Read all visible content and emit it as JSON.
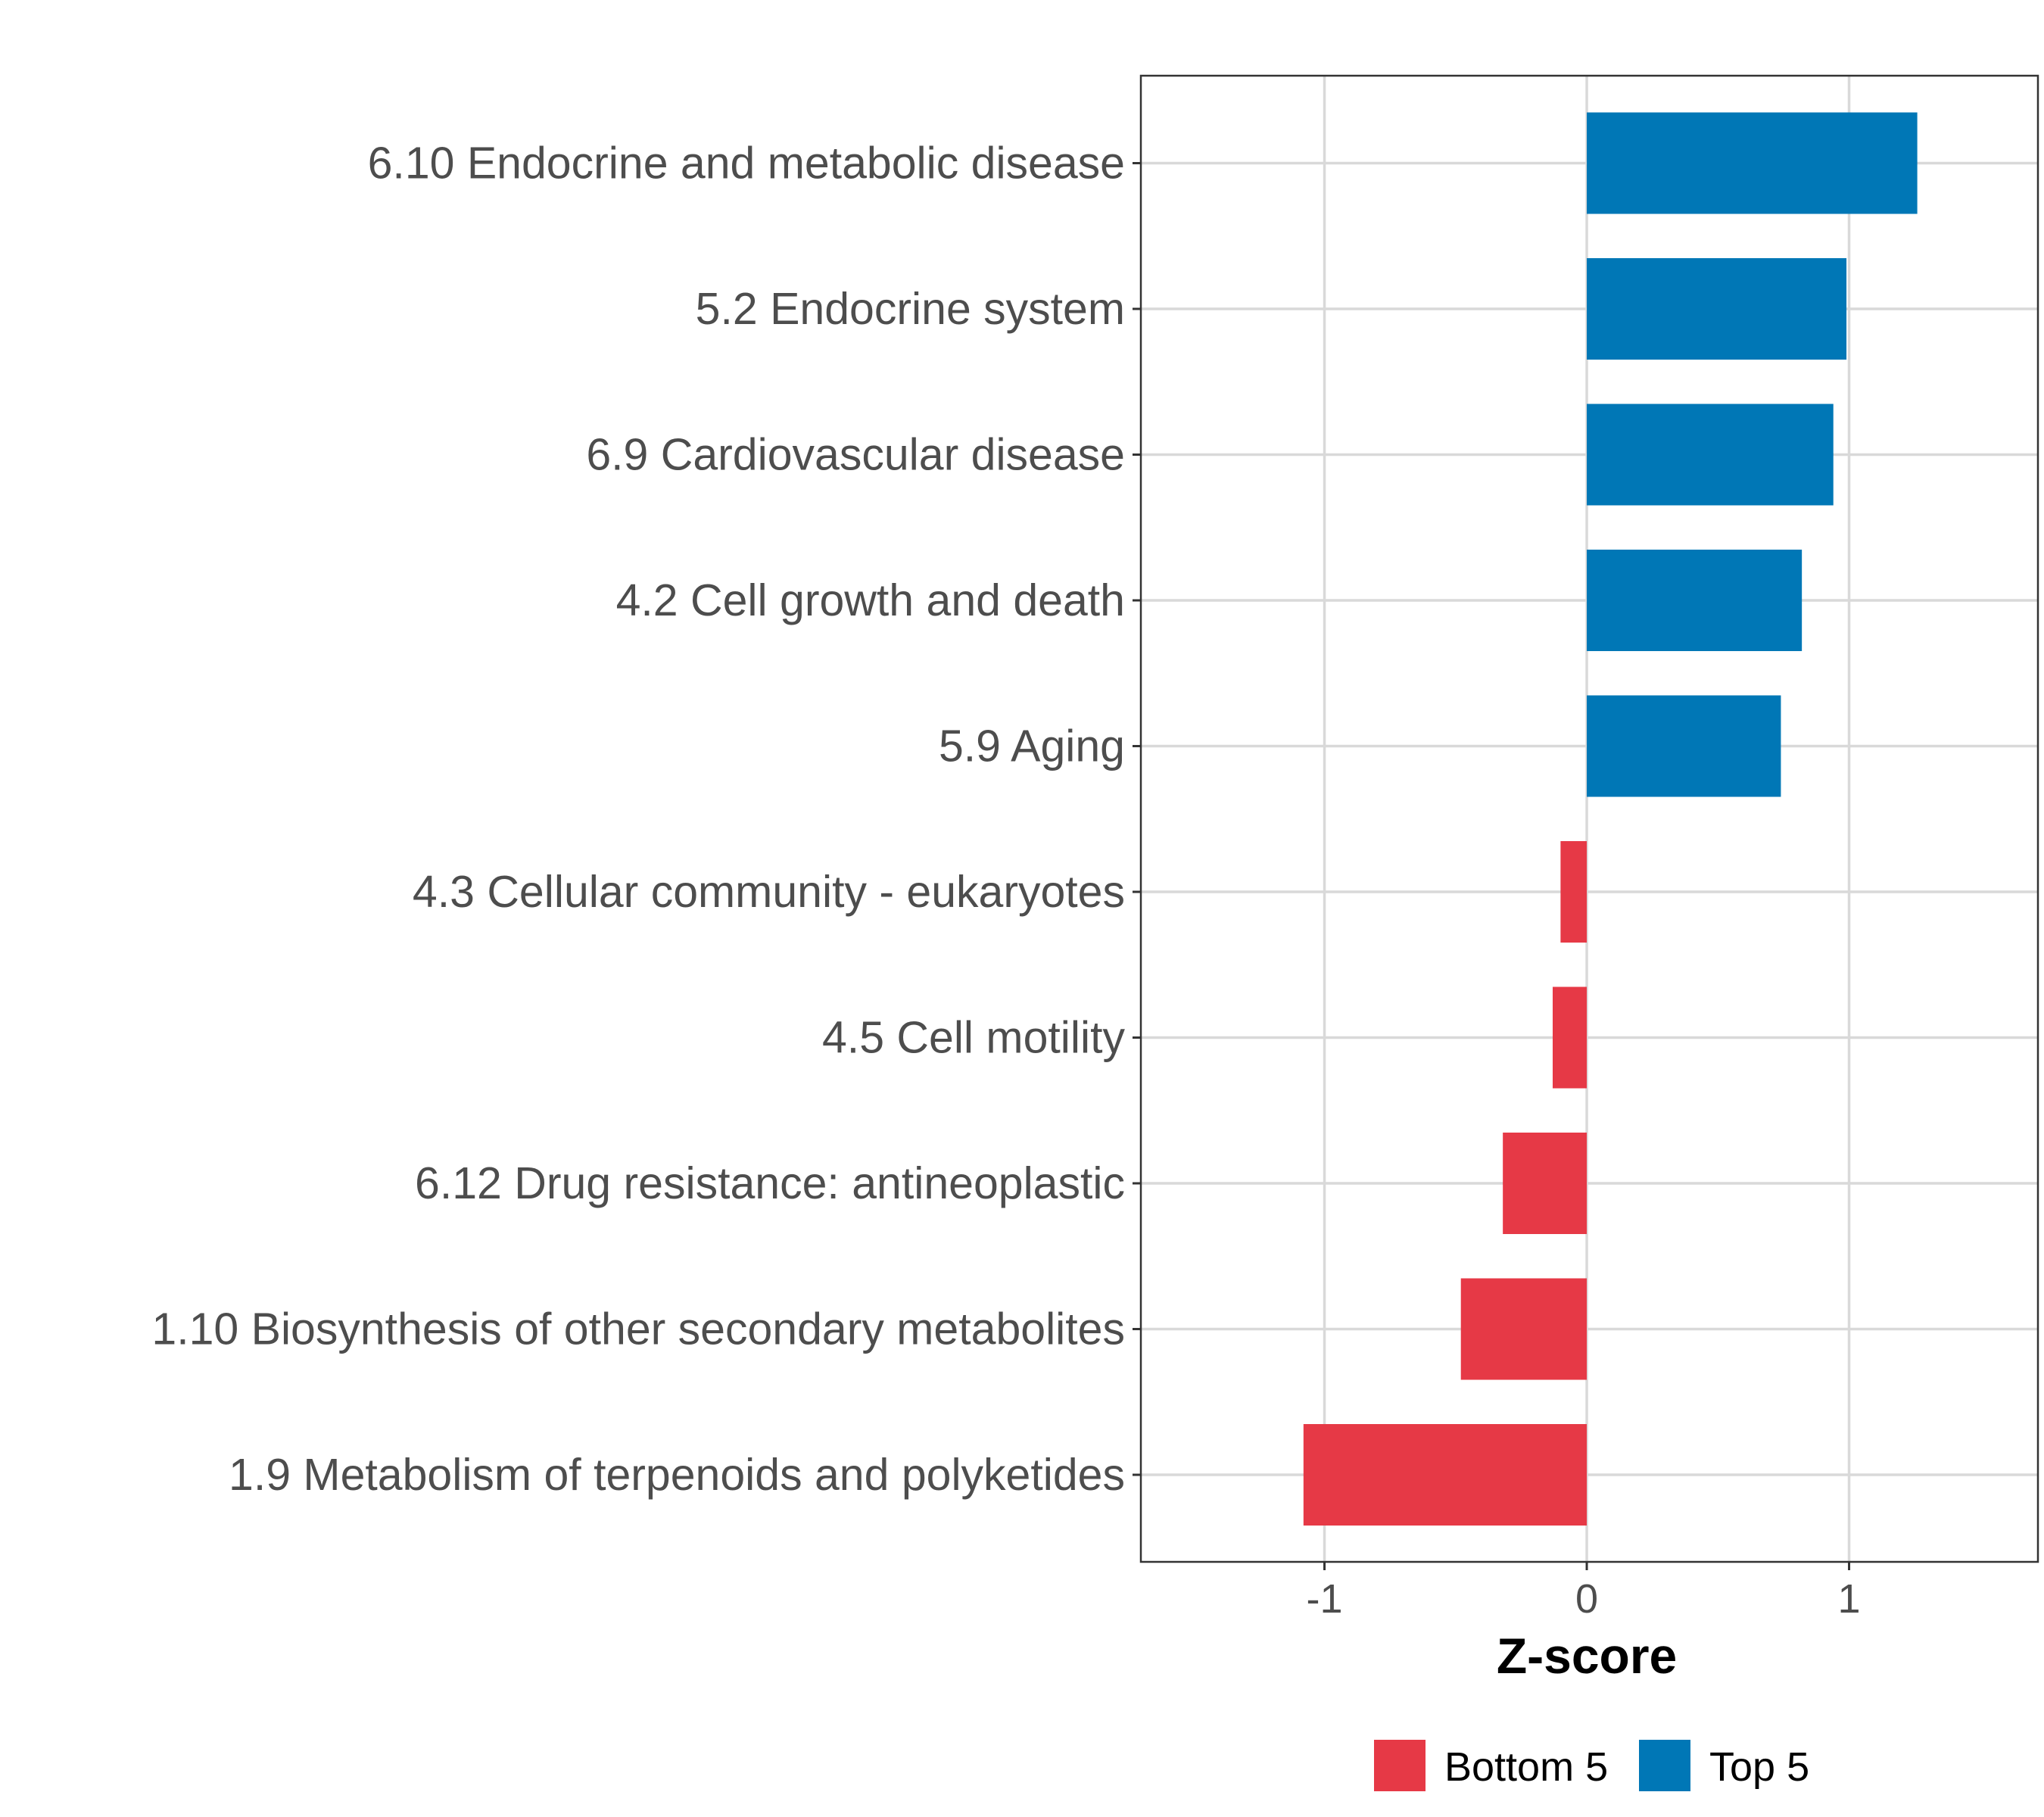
{
  "chart_data": {
    "type": "bar",
    "orientation": "horizontal",
    "title": "",
    "xlabel": "Z-score",
    "ylabel": "",
    "xlim": [
      -1.7,
      1.72
    ],
    "x_ticks": [
      -1,
      0,
      1
    ],
    "x_tick_labels": [
      "-1",
      "0",
      "1"
    ],
    "grid": true,
    "categories": [
      "6.10 Endocrine and metabolic disease",
      "5.2 Endocrine system",
      "6.9 Cardiovascular disease",
      "4.2 Cell growth and death",
      "5.9 Aging",
      "4.3 Cellular community - eukaryotes",
      "4.5 Cell motility",
      "6.12 Drug resistance: antineoplastic",
      "1.10 Biosynthesis of other secondary metabolites",
      "1.9 Metabolism of terpenoids and polyketides"
    ],
    "values": [
      1.26,
      0.99,
      0.94,
      0.82,
      0.74,
      -0.1,
      -0.13,
      -0.32,
      -0.48,
      -1.08
    ],
    "groups": [
      "Top 5",
      "Top 5",
      "Top 5",
      "Top 5",
      "Top 5",
      "Bottom 5",
      "Bottom 5",
      "Bottom 5",
      "Bottom 5",
      "Bottom 5"
    ],
    "legend": {
      "position": "bottom",
      "entries": [
        {
          "label": "Bottom 5",
          "color": "#e63946"
        },
        {
          "label": "Top 5",
          "color": "#0077b6"
        }
      ]
    }
  }
}
